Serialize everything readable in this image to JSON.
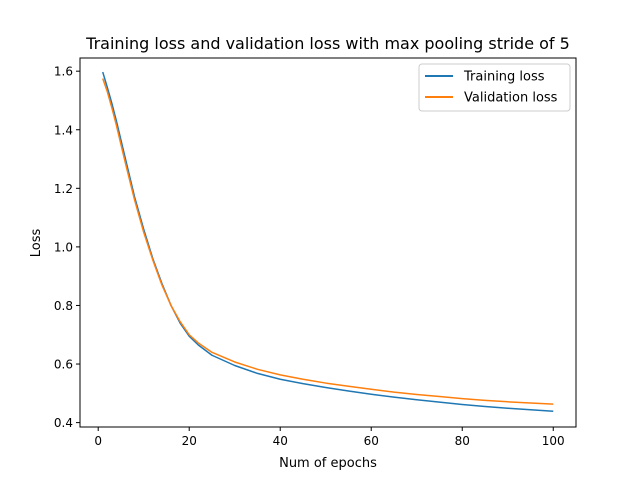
{
  "chart_data": {
    "type": "line",
    "title": "Training loss and validation loss with max pooling stride of 5",
    "xlabel": "Num of epochs",
    "ylabel": "Loss",
    "xlim": [
      -4,
      105
    ],
    "ylim": [
      0.385,
      1.645
    ],
    "xticks": [
      0,
      20,
      40,
      60,
      80,
      100
    ],
    "yticks": [
      0.4,
      0.6,
      0.8,
      1.0,
      1.2,
      1.4,
      1.6
    ],
    "xtick_labels": [
      "0",
      "20",
      "40",
      "60",
      "80",
      "100"
    ],
    "ytick_labels": [
      "0.4",
      "0.6",
      "0.8",
      "1.0",
      "1.2",
      "1.4",
      "1.6"
    ],
    "grid": false,
    "legend": "top-right",
    "x": [
      1,
      2,
      3,
      4,
      5,
      6,
      8,
      10,
      12,
      14,
      16,
      18,
      20,
      22,
      25,
      30,
      35,
      40,
      45,
      50,
      55,
      60,
      65,
      70,
      75,
      80,
      85,
      90,
      95,
      100
    ],
    "series": [
      {
        "name": "Training loss",
        "color": "#1f77b4",
        "values": [
          1.597,
          1.545,
          1.49,
          1.43,
          1.365,
          1.3,
          1.17,
          1.06,
          0.96,
          0.875,
          0.8,
          0.74,
          0.695,
          0.665,
          0.63,
          0.595,
          0.568,
          0.548,
          0.533,
          0.52,
          0.508,
          0.497,
          0.487,
          0.478,
          0.47,
          0.462,
          0.455,
          0.449,
          0.444,
          0.439
        ]
      },
      {
        "name": "Validation loss",
        "color": "#ff7f0e",
        "values": [
          1.575,
          1.53,
          1.475,
          1.415,
          1.35,
          1.285,
          1.16,
          1.05,
          0.955,
          0.87,
          0.8,
          0.745,
          0.7,
          0.672,
          0.64,
          0.607,
          0.582,
          0.563,
          0.548,
          0.535,
          0.524,
          0.514,
          0.504,
          0.496,
          0.489,
          0.482,
          0.476,
          0.471,
          0.467,
          0.463
        ]
      }
    ]
  }
}
